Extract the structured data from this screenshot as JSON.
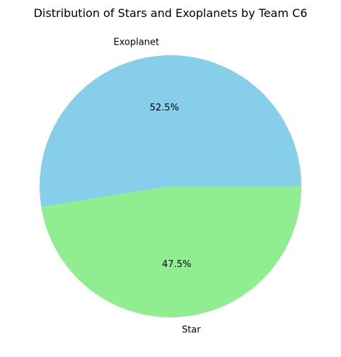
{
  "chart_data": {
    "type": "pie",
    "title": "Distribution of Stars and Exoplanets  by Team C6",
    "slices": [
      {
        "label": "Exoplanet",
        "value": 52.5,
        "pct_label": "52.5%",
        "color": "#87ceeb"
      },
      {
        "label": "Star",
        "value": 47.5,
        "pct_label": "47.5%",
        "color": "#90ee90"
      }
    ]
  }
}
